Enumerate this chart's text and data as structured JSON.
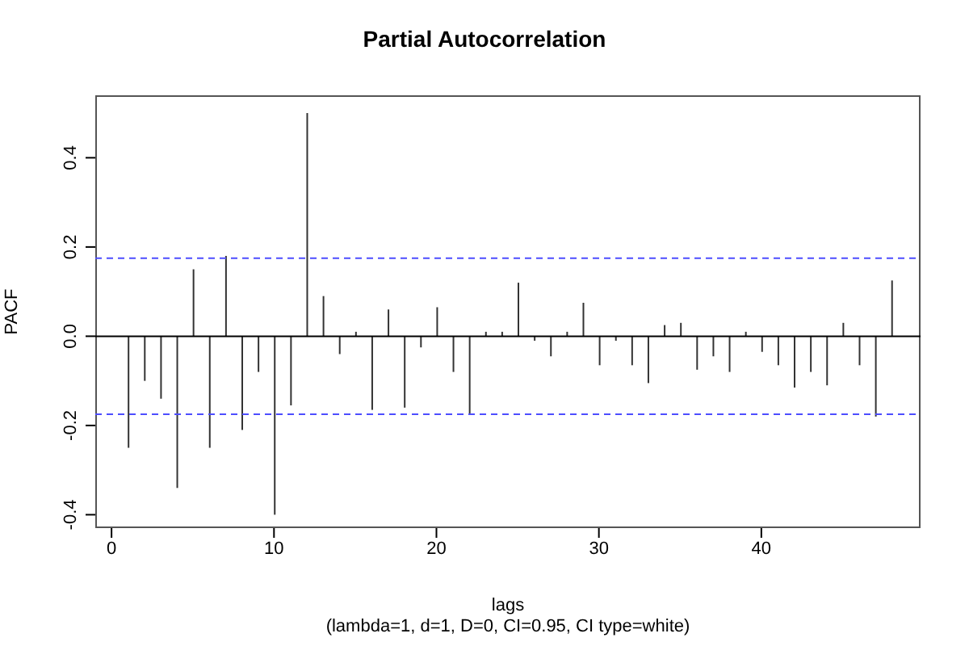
{
  "chart_data": {
    "type": "bar",
    "title": "Partial Autocorrelation",
    "xlabel": "lags",
    "ylabel": "PACF",
    "annotations": [
      "(lambda=1, d=1, D=0, CI=0.95, CI type=white)"
    ],
    "x": [
      1,
      2,
      3,
      4,
      5,
      6,
      7,
      8,
      9,
      10,
      11,
      12,
      13,
      14,
      15,
      16,
      17,
      18,
      19,
      20,
      21,
      22,
      23,
      24,
      25,
      26,
      27,
      28,
      29,
      30,
      31,
      32,
      33,
      34,
      35,
      36,
      37,
      38,
      39,
      40,
      41,
      42,
      43,
      44,
      45,
      46,
      47,
      48
    ],
    "values": [
      -0.25,
      -0.1,
      -0.14,
      -0.34,
      0.15,
      -0.25,
      0.18,
      -0.21,
      -0.08,
      -0.4,
      -0.155,
      0.5,
      0.09,
      -0.04,
      0.01,
      -0.165,
      0.06,
      -0.16,
      -0.025,
      0.065,
      -0.08,
      -0.175,
      0.01,
      0.01,
      0.12,
      -0.01,
      -0.045,
      0.01,
      0.075,
      -0.065,
      -0.01,
      -0.065,
      -0.105,
      0.025,
      0.03,
      -0.075,
      -0.045,
      -0.08,
      0.01,
      -0.035,
      -0.065,
      -0.115,
      -0.08,
      -0.11,
      0.03,
      -0.065,
      -0.18,
      0.125
    ],
    "color": "#333333",
    "xlim": [
      -1,
      49.8
    ],
    "xticks": [
      0,
      10,
      20,
      30,
      40
    ],
    "ylim": [
      -0.43,
      0.54
    ],
    "yticks": [
      {
        "value": -0.4,
        "label": "-0.4"
      },
      {
        "value": -0.2,
        "label": "-0.2"
      },
      {
        "value": 0,
        "label": "0.0"
      },
      {
        "value": 0.2,
        "label": "0.2"
      },
      {
        "value": 0.4,
        "label": "0.4"
      }
    ],
    "ref_lines": [
      {
        "axis": "y",
        "value": 0,
        "color": "#000000",
        "line_style": "solid"
      },
      {
        "axis": "y",
        "value": 0.175,
        "color": "#4d4dff",
        "line_style": "dashed"
      },
      {
        "axis": "y",
        "value": -0.175,
        "color": "#4d4dff",
        "line_style": "dashed"
      }
    ],
    "grid": false,
    "legend": false
  }
}
